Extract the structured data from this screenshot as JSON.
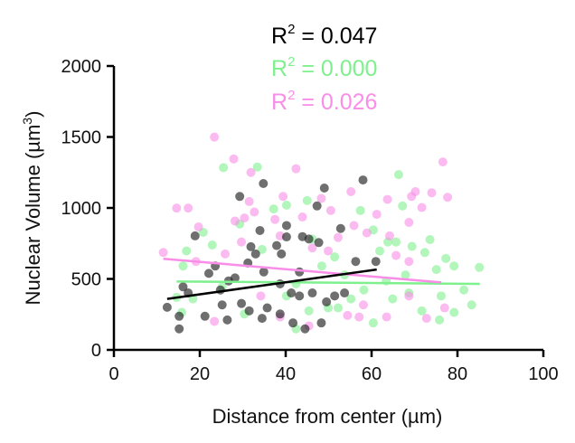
{
  "chart_data": {
    "type": "scatter",
    "xlabel": "Distance from center (µm)",
    "ylabel": "Nuclear Volume (µm³)",
    "ylabel_parts": {
      "base": "Nuclear Volume (µm",
      "sup": "3",
      "end": ")"
    },
    "xlim": [
      0,
      100
    ],
    "ylim": [
      0,
      2000
    ],
    "xticks": [
      "0",
      "20",
      "40",
      "60",
      "80",
      "100"
    ],
    "yticks": [
      "0",
      "500",
      "1000",
      "1500",
      "2000"
    ],
    "grid": false,
    "series": [
      {
        "name": "black",
        "color": "#222222",
        "r2_label": "R",
        "r2_sup": "2",
        "r2_value": " = 0.047",
        "fit": [
          [
            12.4,
            359
          ],
          [
            61.2,
            566
          ]
        ],
        "points": [
          [
            12.4,
            300
          ],
          [
            15.2,
            237
          ],
          [
            15.2,
            148
          ],
          [
            16.1,
            444
          ],
          [
            17.3,
            401
          ],
          [
            18.9,
            803
          ],
          [
            21.2,
            237
          ],
          [
            22.1,
            539
          ],
          [
            23.6,
            591
          ],
          [
            24.8,
            422
          ],
          [
            25.2,
            317
          ],
          [
            26.4,
            211
          ],
          [
            26.7,
            486
          ],
          [
            29.3,
            1081
          ],
          [
            29.7,
            327
          ],
          [
            31.5,
            275
          ],
          [
            31.9,
            727
          ],
          [
            33.0,
            676
          ],
          [
            34.0,
            841
          ],
          [
            34.5,
            222
          ],
          [
            34.8,
            1172
          ],
          [
            35.7,
            296
          ],
          [
            37.9,
            735
          ],
          [
            38.7,
            253
          ],
          [
            39.0,
            676
          ],
          [
            40.2,
            876
          ],
          [
            40.2,
            796
          ],
          [
            41.3,
            401
          ],
          [
            41.7,
            190
          ],
          [
            43.2,
            380
          ],
          [
            43.9,
            798
          ],
          [
            44.5,
            148
          ],
          [
            45.4,
            781
          ],
          [
            46.2,
            401
          ],
          [
            47.3,
            1014
          ],
          [
            47.7,
            756
          ],
          [
            48.3,
            190
          ],
          [
            49.0,
            1140
          ],
          [
            49.5,
            338
          ],
          [
            51.4,
            380
          ],
          [
            52.8,
            855
          ],
          [
            53.7,
            401
          ],
          [
            56.3,
            623
          ],
          [
            58.0,
            1197
          ],
          [
            61.0,
            623
          ],
          [
            43.2,
            549
          ],
          [
            38.7,
            465
          ],
          [
            34.9,
            549
          ],
          [
            28.2,
            507
          ],
          [
            31.2,
            612
          ]
        ]
      },
      {
        "name": "green",
        "color": "#7ef08e",
        "r2_label": "R",
        "r2_sup": "2",
        "r2_value": " = 0.000",
        "fit": [
          [
            14.6,
            482
          ],
          [
            85.2,
            465
          ]
        ],
        "points": [
          [
            14.6,
            370
          ],
          [
            15.8,
            264
          ],
          [
            16.1,
            591
          ],
          [
            16.9,
            697
          ],
          [
            18.4,
            359
          ],
          [
            20.8,
            828
          ],
          [
            22.9,
            739
          ],
          [
            25.2,
            444
          ],
          [
            25.5,
            1284
          ],
          [
            29.3,
            887
          ],
          [
            30.4,
            253
          ],
          [
            33.4,
            1288
          ],
          [
            34.5,
            708
          ],
          [
            37.2,
            993
          ],
          [
            40.2,
            1020
          ],
          [
            40.2,
            380
          ],
          [
            42.4,
            465
          ],
          [
            45.0,
            1052
          ],
          [
            45.4,
            275
          ],
          [
            46.2,
            781
          ],
          [
            48.4,
            591
          ],
          [
            49.9,
            296
          ],
          [
            51.4,
            655
          ],
          [
            53.7,
            528
          ],
          [
            57.4,
            982
          ],
          [
            58.2,
            422
          ],
          [
            60.4,
            845
          ],
          [
            61.9,
            697
          ],
          [
            63.8,
            760
          ],
          [
            65.7,
            760
          ],
          [
            66.3,
            1235
          ],
          [
            67.2,
            1014
          ],
          [
            67.9,
            528
          ],
          [
            69.4,
            729
          ],
          [
            72.4,
            686
          ],
          [
            73.6,
            777
          ],
          [
            75.1,
            566
          ],
          [
            77.3,
            644
          ],
          [
            79.2,
            591
          ],
          [
            81.5,
            422
          ],
          [
            83.3,
            317
          ],
          [
            85.1,
            581
          ],
          [
            76.2,
            380
          ],
          [
            71.7,
            275
          ],
          [
            68.7,
            401
          ],
          [
            64.9,
            359
          ],
          [
            60.4,
            190
          ],
          [
            55.2,
            359
          ],
          [
            52.2,
            296
          ],
          [
            63.4,
            486
          ],
          [
            79.2,
            264
          ],
          [
            75.8,
            211
          ],
          [
            42.4,
            148
          ]
        ]
      },
      {
        "name": "pink",
        "color": "#f98de8",
        "r2_label": "R",
        "r2_sup": "2",
        "r2_value": " = 0.026",
        "fit": [
          [
            11.5,
            642
          ],
          [
            76.2,
            475
          ]
        ],
        "points": [
          [
            11.5,
            686
          ],
          [
            14.6,
            999
          ],
          [
            17.3,
            999
          ],
          [
            19.7,
            866
          ],
          [
            19.1,
            623
          ],
          [
            23.4,
            1499
          ],
          [
            23.4,
            201
          ],
          [
            25.9,
            676
          ],
          [
            27.9,
            1345
          ],
          [
            28.2,
            908
          ],
          [
            30.4,
            929
          ],
          [
            31.5,
            1045
          ],
          [
            31.9,
            1250
          ],
          [
            32.7,
            971
          ],
          [
            37.5,
            919
          ],
          [
            38.7,
            803
          ],
          [
            39.4,
            1081
          ],
          [
            42.4,
            1276
          ],
          [
            43.9,
            936
          ],
          [
            45.4,
            169
          ],
          [
            46.2,
            718
          ],
          [
            48.3,
            1067
          ],
          [
            49.9,
            697
          ],
          [
            50.5,
            982
          ],
          [
            52.2,
            792
          ],
          [
            54.4,
            243
          ],
          [
            55.2,
            1115
          ],
          [
            55.9,
            876
          ],
          [
            57.1,
            232
          ],
          [
            58.9,
            824
          ],
          [
            61.2,
            955
          ],
          [
            63.7,
            1060
          ],
          [
            64.2,
            803
          ],
          [
            65.7,
            665
          ],
          [
            68.7,
            898
          ],
          [
            68.7,
            623
          ],
          [
            69.3,
            1081
          ],
          [
            70.2,
            1115
          ],
          [
            71.7,
            1003
          ],
          [
            72.8,
            222
          ],
          [
            74.0,
            1107
          ],
          [
            76.6,
            1324
          ],
          [
            77.7,
            1075
          ],
          [
            77.0,
            296
          ],
          [
            68.7,
            380
          ],
          [
            63.5,
            232
          ],
          [
            58.1,
            317
          ],
          [
            38.7,
            232
          ],
          [
            34.2,
            380
          ],
          [
            29.7,
            760
          ]
        ]
      }
    ]
  }
}
